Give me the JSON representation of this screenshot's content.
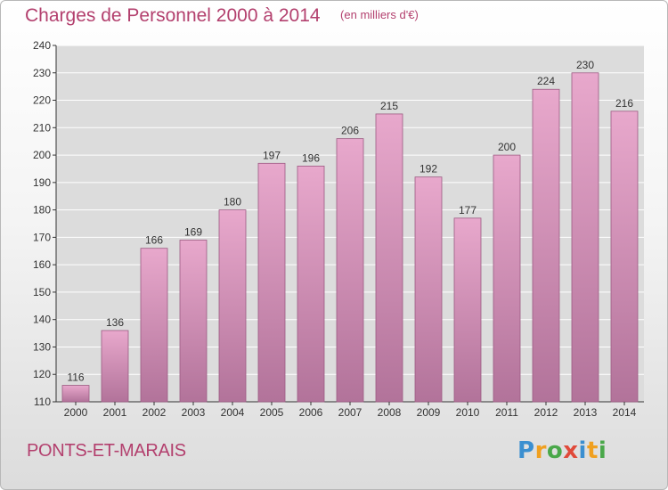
{
  "header": {
    "title": "Charges de Personnel 2000 à 2014",
    "subtitle": "(en milliers d'€)"
  },
  "footer": {
    "commune": "PONTS-ET-MARAIS",
    "logo_text": "Proxiti",
    "logo_letters": [
      {
        "ch": "P",
        "color": "#3b8fd0"
      },
      {
        "ch": "r",
        "color": "#f0a020"
      },
      {
        "ch": "o",
        "color": "#4aa84a"
      },
      {
        "ch": "x",
        "color": "#e04a3a"
      },
      {
        "ch": "i",
        "color": "#3b8fd0"
      },
      {
        "ch": "t",
        "color": "#f0a020"
      },
      {
        "ch": "i",
        "color": "#4aa84a"
      }
    ]
  },
  "chart_data": {
    "type": "bar",
    "categories": [
      "2000",
      "2001",
      "2002",
      "2003",
      "2004",
      "2005",
      "2006",
      "2007",
      "2008",
      "2009",
      "2010",
      "2011",
      "2012",
      "2013",
      "2014"
    ],
    "values": [
      116,
      136,
      166,
      169,
      180,
      197,
      196,
      206,
      215,
      192,
      177,
      200,
      224,
      230,
      216
    ],
    "title": "Charges de Personnel 2000 à 2014",
    "ylim": [
      110,
      240
    ],
    "yticks": [
      110,
      120,
      130,
      140,
      150,
      160,
      170,
      180,
      190,
      200,
      210,
      220,
      230,
      240
    ],
    "grid": true,
    "colors": {
      "bar_top": "#e8a8cc",
      "bar_bottom": "#b2739a",
      "bar_stroke": "#9c5a82",
      "label": "#333333",
      "axis": "#333333",
      "grid": "#ffffff",
      "plot_bg": "#dcdcdc"
    }
  }
}
